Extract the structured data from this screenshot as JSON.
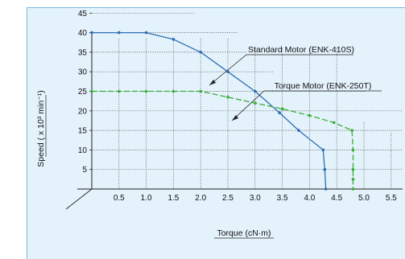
{
  "colors": {
    "panel_bg": "#e4f2fb",
    "panel_border": "#7ab8da",
    "standard_series": "#2e6db4",
    "torque_series": "#3aae3a",
    "grid": "#555555",
    "axis": "#222222"
  },
  "chart_data": {
    "type": "line",
    "title": "",
    "xlabel": "Torque (cN·m)",
    "ylabel": "Speed ( x 10³ min⁻¹)",
    "xlim": [
      0,
      5.5
    ],
    "ylim": [
      0,
      45
    ],
    "x_ticks": [
      0.5,
      1.0,
      1.5,
      2.0,
      2.5,
      3.0,
      3.5,
      4.0,
      4.5,
      5.0,
      5.5
    ],
    "x_tick_labels": [
      "0.5",
      "1.0",
      "1.5",
      "2.0",
      "2.5",
      "3.0",
      "3.5",
      "4.0",
      "4.5",
      "5.0",
      "5.5"
    ],
    "y_ticks": [
      5,
      10,
      15,
      20,
      25,
      30,
      35,
      40,
      45
    ],
    "y_tick_labels": [
      "5",
      "10",
      "15",
      "20",
      "25",
      "30",
      "35",
      "40",
      "45"
    ],
    "grid": true,
    "series": [
      {
        "name": "Standard Motor (ENK-410S)",
        "style": "solid",
        "x": [
          0,
          0.5,
          1.0,
          1.5,
          2.0,
          2.5,
          3.0,
          3.45,
          3.8,
          4.25,
          4.28,
          4.3
        ],
        "y": [
          40,
          40,
          40,
          38.3,
          35,
          30,
          25,
          19.5,
          15,
          10,
          5,
          0
        ]
      },
      {
        "name": "Torque Motor (ENK-250T)",
        "style": "dashed",
        "x": [
          0,
          0.5,
          1.0,
          1.5,
          2.0,
          2.5,
          3.0,
          3.5,
          4.0,
          4.45,
          4.78,
          4.8,
          4.8,
          4.8,
          4.8
        ],
        "y": [
          25,
          25,
          25,
          25,
          25,
          23.5,
          22,
          20.5,
          18.8,
          17,
          15,
          10,
          5,
          2.5,
          0
        ]
      }
    ]
  }
}
